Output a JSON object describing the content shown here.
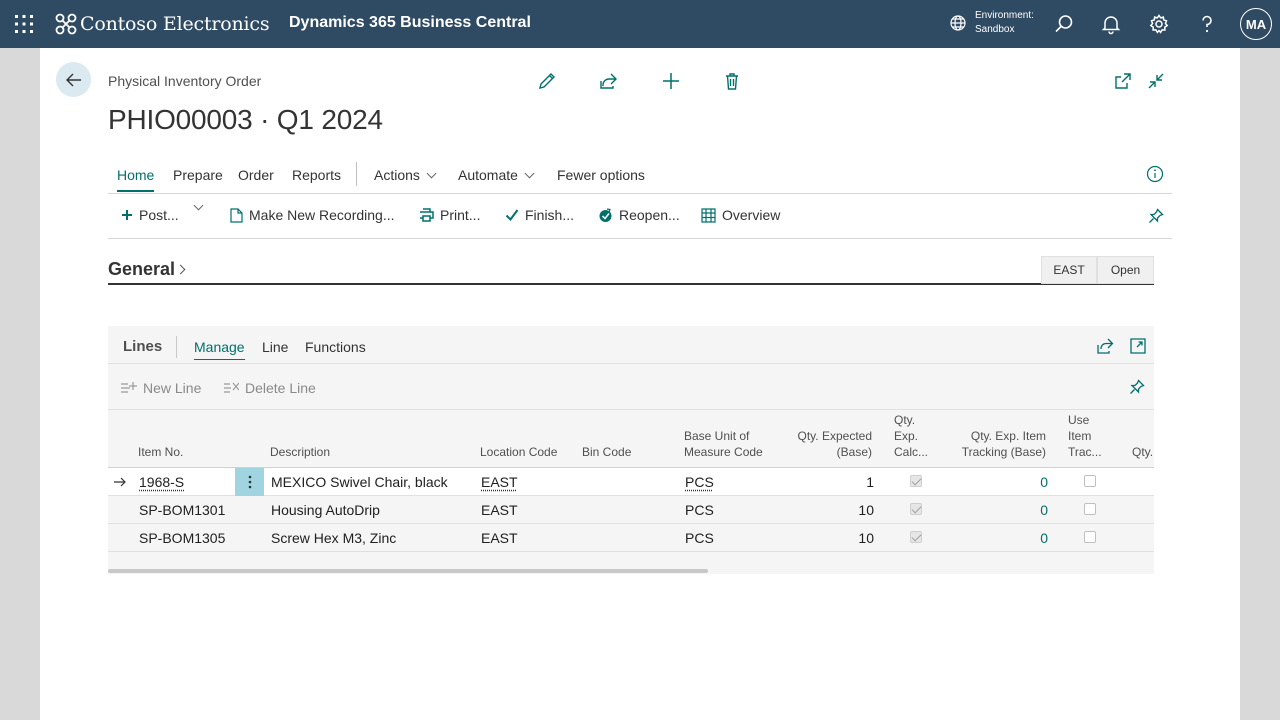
{
  "topbar": {
    "brand": "Contoso Electronics",
    "product": "Dynamics 365 Business Central",
    "environment_label": "Environment:",
    "environment_value": "Sandbox",
    "avatar": "MA",
    "background_color": "#2f4a63"
  },
  "header": {
    "caption": "Physical Inventory Order",
    "title": "PHIO00003 · Q1 2024"
  },
  "menu": {
    "items": [
      "Home",
      "Prepare",
      "Order",
      "Reports",
      "Actions",
      "Automate",
      "Fewer options"
    ],
    "active": "Home"
  },
  "actionbar": {
    "post": "Post...",
    "make_new_recording": "Make New Recording...",
    "print": "Print...",
    "finish": "Finish...",
    "reopen": "Reopen...",
    "overview": "Overview"
  },
  "general": {
    "title": "General",
    "badge_location": "EAST",
    "badge_status": "Open"
  },
  "lines": {
    "title": "Lines",
    "tabs": [
      "Manage",
      "Line",
      "Functions"
    ],
    "active_tab": "Manage",
    "new_line": "New Line",
    "delete_line": "Delete Line",
    "columns": {
      "item_no": "Item No.",
      "description": "Description",
      "location_code": "Location Code",
      "bin_code": "Bin Code",
      "base_uom_1": "Base Unit of",
      "base_uom_2": "Measure Code",
      "qty_expected_1": "Qty. Expected",
      "qty_expected_2": "(Base)",
      "qty_exp_calc_1": "Qty.",
      "qty_exp_calc_2": "Exp.",
      "qty_exp_calc_3": "Calc...",
      "qty_exp_item_1": "Qty. Exp. Item",
      "qty_exp_item_2": "Tracking (Base)",
      "use_item_1": "Use",
      "use_item_2": "Item",
      "use_item_3": "Trac...",
      "qty_partial": "Qty."
    },
    "rows": [
      {
        "item_no": "1968-S",
        "description": "MEXICO Swivel Chair, black",
        "location": "EAST",
        "bin": "",
        "uom": "PCS",
        "qty_expected": "1",
        "qty_exp_calculated": true,
        "qty_exp_item_tracking": "0",
        "use_item_tracking": false
      },
      {
        "item_no": "SP-BOM1301",
        "description": "Housing AutoDrip",
        "location": "EAST",
        "bin": "",
        "uom": "PCS",
        "qty_expected": "10",
        "qty_exp_calculated": true,
        "qty_exp_item_tracking": "0",
        "use_item_tracking": false
      },
      {
        "item_no": "SP-BOM1305",
        "description": "Screw Hex M3, Zinc",
        "location": "EAST",
        "bin": "",
        "uom": "PCS",
        "qty_expected": "10",
        "qty_exp_calculated": true,
        "qty_exp_item_tracking": "0",
        "use_item_tracking": false
      }
    ]
  },
  "colors": {
    "accent": "#00706b",
    "row_action_highlight": "#9fd4e0"
  }
}
